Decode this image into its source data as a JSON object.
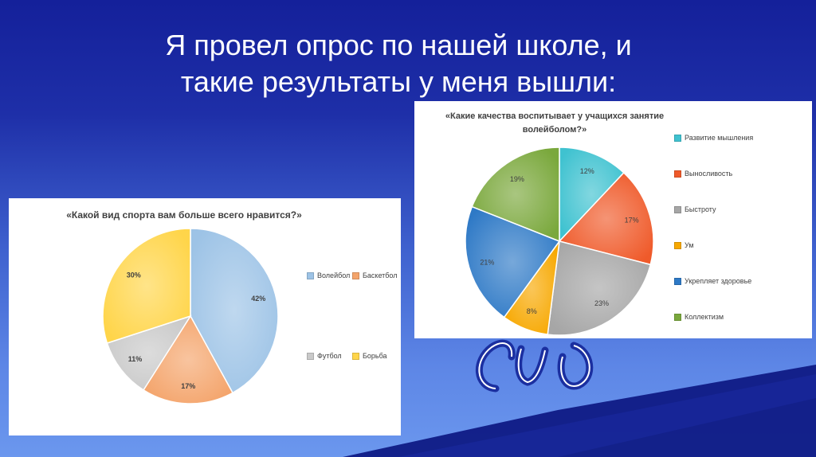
{
  "slide": {
    "title_line1": "Я провел опрос по нашей школе, и",
    "title_line2": "такие результаты у меня вышли:"
  },
  "colors": {
    "background_top": "#14209a",
    "background_bottom": "#6b97ee",
    "accent_band": "#0f1a85",
    "title_text": "#ffffff",
    "logo": "#1b2fa0"
  },
  "chart_data": [
    {
      "type": "pie",
      "title": "«Какой вид спорта вам больше всего нравится?»",
      "categories": [
        "Волейбол",
        "Баскетбол",
        "Футбол",
        "Борьба"
      ],
      "values": [
        42,
        17,
        11,
        30
      ],
      "labels": [
        "42%",
        "17%",
        "11%",
        "30%"
      ],
      "colors": [
        "#9dc3e6",
        "#f4a46b",
        "#c9c9c9",
        "#ffd54a"
      ],
      "legend_placement": "right",
      "start": "top",
      "direction": "clockwise"
    },
    {
      "type": "pie",
      "title": "«Какие качества воспитывает у учащихся занятие волейболом?»",
      "categories": [
        "Развитие мышления",
        "Выносливость",
        "Быстроту",
        "Ум",
        "Укрепляет здоровье",
        "Коллектизм"
      ],
      "values": [
        12,
        17,
        23,
        8,
        21,
        19
      ],
      "labels": [
        "12%",
        "17%",
        "23%",
        "8%",
        "21%",
        "19%"
      ],
      "colors": [
        "#3fc2d0",
        "#ef5a2a",
        "#a6a6a6",
        "#f7a800",
        "#2e79c6",
        "#7aa83c"
      ],
      "legend_placement": "right",
      "start": "top",
      "direction": "clockwise"
    }
  ]
}
